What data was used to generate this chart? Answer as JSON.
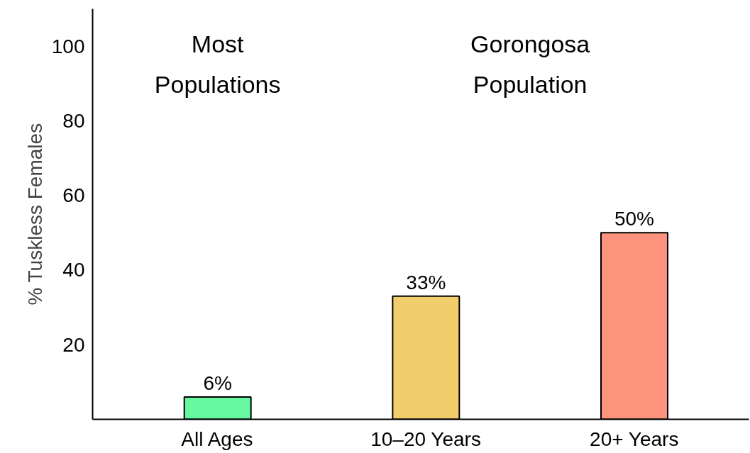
{
  "chart_data": {
    "type": "bar",
    "ylabel": "% Tuskless Females",
    "categories": [
      "All Ages",
      "10–20 Years",
      "20+ Years"
    ],
    "values": [
      6,
      33,
      50
    ],
    "colors": [
      "#66f9a0",
      "#f2cd6c",
      "#fd937c"
    ],
    "value_labels": [
      "6%",
      "33%",
      "50%"
    ],
    "annotations": [
      "Most\nPopulations",
      "Gorongosa\nPopulation"
    ],
    "ylim": [
      0,
      110
    ],
    "yticks": [
      20,
      40,
      60,
      80,
      100
    ],
    "grid": false
  }
}
